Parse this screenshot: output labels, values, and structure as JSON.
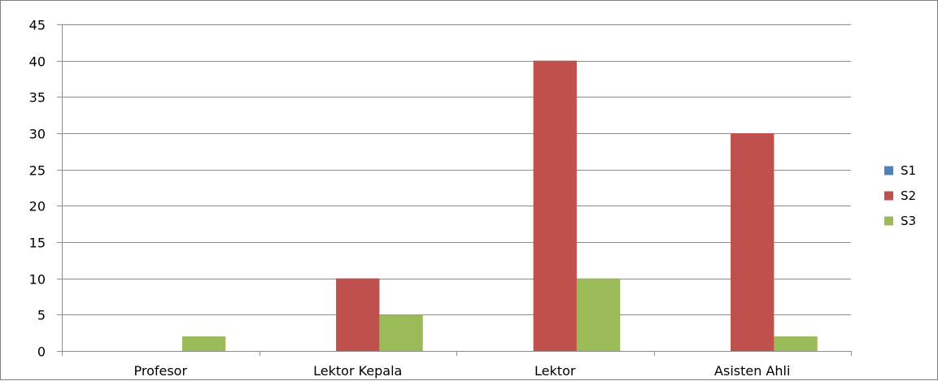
{
  "chart_data": {
    "type": "bar",
    "categories": [
      "Profesor",
      "Lektor Kepala",
      "Lektor",
      "Asisten Ahli"
    ],
    "series": [
      {
        "name": "S1",
        "color": "#4f81bd",
        "values": [
          0,
          0,
          0,
          0
        ]
      },
      {
        "name": "S2",
        "color": "#c0504d",
        "values": [
          0,
          10,
          40,
          30
        ]
      },
      {
        "name": "S3",
        "color": "#9bbb59",
        "values": [
          2,
          5,
          10,
          2
        ]
      }
    ],
    "title": "",
    "xlabel": "",
    "ylabel": "",
    "ylim": [
      0,
      45
    ],
    "yticks": [
      0,
      5,
      10,
      15,
      20,
      25,
      30,
      35,
      40,
      45
    ],
    "grid": "horizontal",
    "legend_position": "right"
  }
}
